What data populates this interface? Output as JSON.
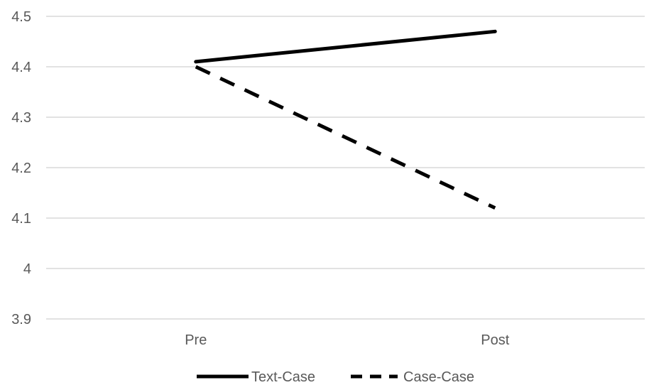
{
  "chart_data": {
    "type": "line",
    "x": [
      "Pre",
      "Post"
    ],
    "ylim": [
      3.9,
      4.5
    ],
    "yticks": [
      3.9,
      4,
      4.1,
      4.2,
      4.3,
      4.4,
      4.5
    ],
    "ytick_labels": [
      "3.9",
      "4",
      "4.1",
      "4.2",
      "4.3",
      "4.4",
      "4.5"
    ],
    "grid": true,
    "legend_position": "bottom",
    "series": [
      {
        "name": "Text-Case",
        "values": [
          4.41,
          4.47
        ],
        "color": "#000000",
        "style": "solid"
      },
      {
        "name": "Case-Case",
        "values": [
          4.4,
          4.12
        ],
        "color": "#000000",
        "style": "dashed"
      }
    ]
  },
  "colors": {
    "gridline": "#d9d9d9",
    "tick_text": "#595959",
    "line": "#000000"
  }
}
